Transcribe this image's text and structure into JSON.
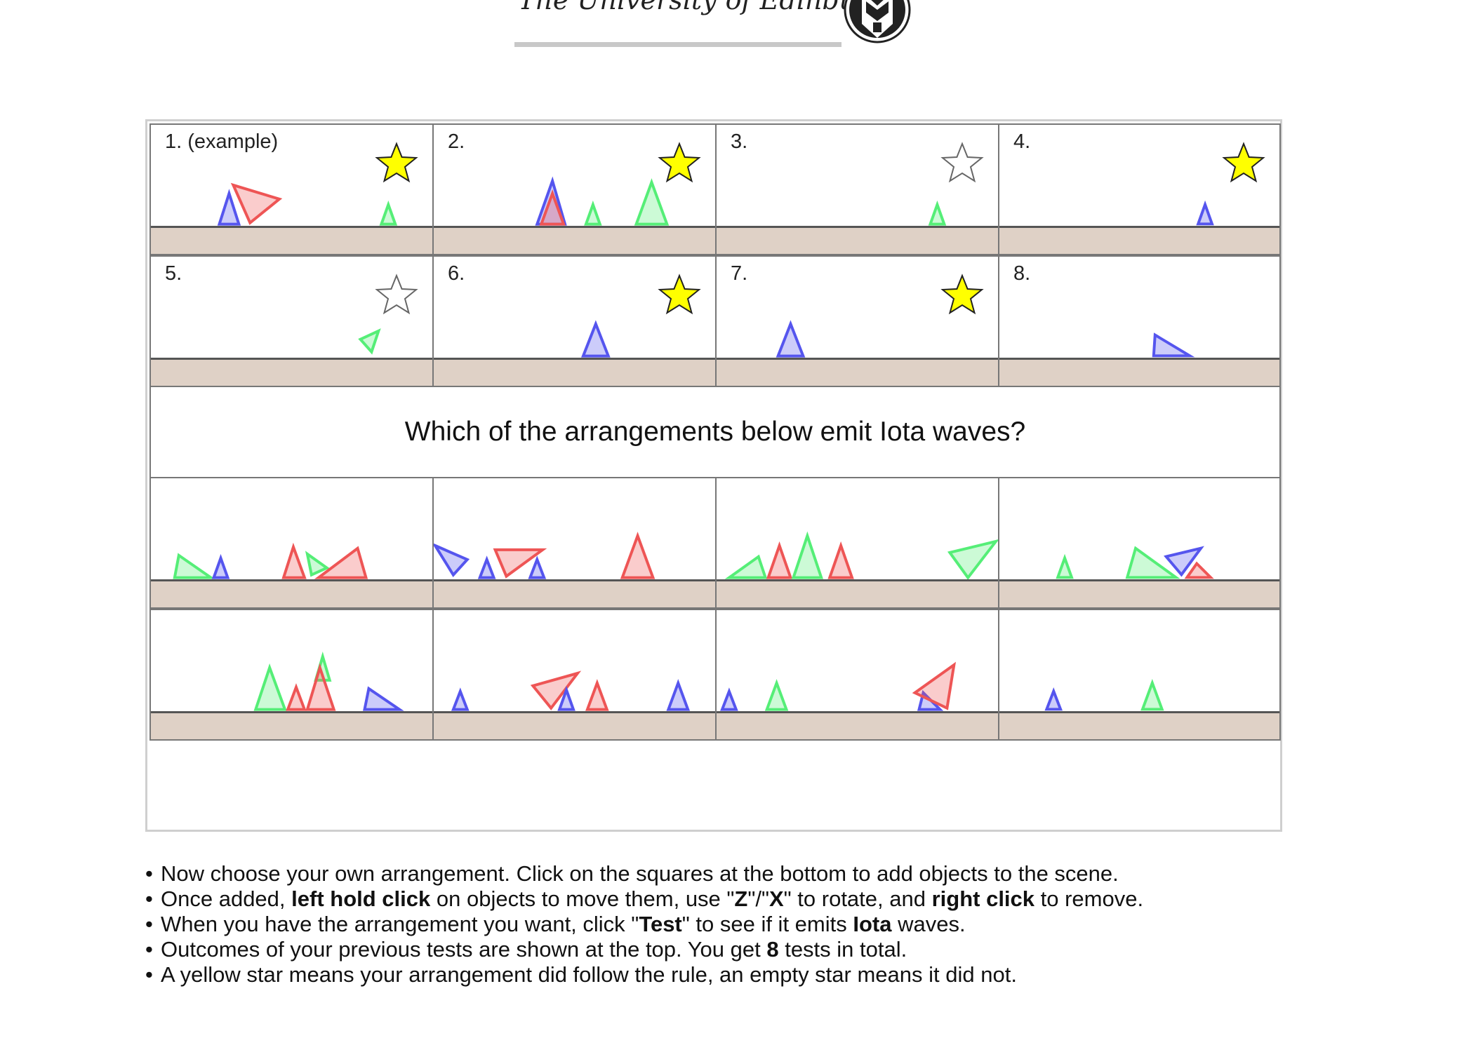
{
  "header": {
    "institution": "The University of Edinburgh",
    "crest_icon": "university-crest-icon"
  },
  "colors": {
    "red": "#ee5555",
    "blue": "#5555ee",
    "green": "#55ee77",
    "star_yellow": "#ffff00",
    "ground": "#dfd1c6"
  },
  "tests": [
    {
      "label": "1.  (example)",
      "star": "filled"
    },
    {
      "label": "2.",
      "star": "filled"
    },
    {
      "label": "3.",
      "star": "empty"
    },
    {
      "label": "4.",
      "star": "filled"
    },
    {
      "label": "5.",
      "star": "empty"
    },
    {
      "label": "6.",
      "star": "filled"
    },
    {
      "label": "7.",
      "star": "filled"
    },
    {
      "label": "8.",
      "star": "none"
    }
  ],
  "question": "Which of the arrangements below emit Iota waves?",
  "instructions": {
    "line1": "Now choose your own arrangement. Click on the squares at the bottom to add objects to the scene.",
    "line2_a": "Once added, ",
    "line2_b": "left hold click",
    "line2_c": " on objects to move them, use \"",
    "line2_d": "Z",
    "line2_e": "\"/\"",
    "line2_f": "X",
    "line2_g": "\" to rotate, and ",
    "line2_h": "right click",
    "line2_i": " to remove.",
    "line3_a": "When you have the arrangement you want, click \"",
    "line3_b": "Test",
    "line3_c": "\" to see if it emits ",
    "line3_d": "Iota",
    "line3_e": " waves.",
    "line4_a": "Outcomes of your previous tests are shown at the top. You get ",
    "line4_b": "8",
    "line4_c": " tests in total.",
    "line5": "A yellow star means your arrangement did follow the rule, an empty star means it did not."
  }
}
